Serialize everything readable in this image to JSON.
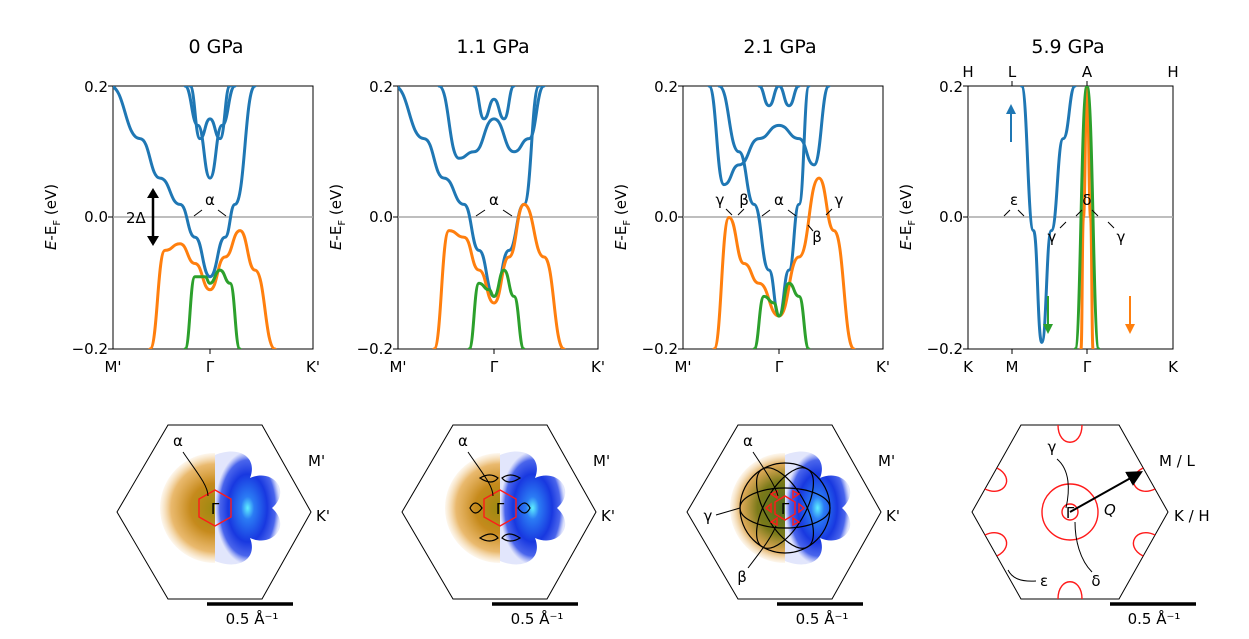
{
  "chart_data": [
    {
      "type": "line",
      "title": "0 GPa",
      "ylabel": "E-E_F (eV)",
      "ylim": [
        -0.2,
        0.2
      ],
      "y_ticks": [
        "0.2",
        "0.0",
        "−0.2"
      ],
      "x_ticks": [
        "M'",
        "Γ",
        "K'"
      ],
      "top_ticks": [],
      "annotations": [
        "2Δ",
        "α"
      ],
      "series": [
        {
          "color": "#1f77b4",
          "x": [
            -1,
            -0.7,
            -0.5,
            -0.3,
            -0.15,
            0,
            0.15,
            0.25,
            0.45
          ],
          "y": [
            0.2,
            0.12,
            0.06,
            0.02,
            -0.03,
            -0.09,
            -0.03,
            0.02,
            0.2
          ]
        },
        {
          "color": "#1f77b4",
          "x": [
            -0.25,
            -0.12,
            0,
            0.12,
            0.25
          ],
          "y": [
            0.2,
            0.14,
            0.06,
            0.14,
            0.2
          ]
        },
        {
          "color": "#1f77b4",
          "x": [
            -0.2,
            -0.1,
            0,
            0.1,
            0.2
          ],
          "y": [
            0.2,
            0.12,
            0.15,
            0.12,
            0.2
          ]
        },
        {
          "color": "#ff7f0e",
          "x": [
            -0.6,
            -0.45,
            -0.3,
            -0.15,
            0,
            0.15,
            0.3,
            0.45,
            0.65
          ],
          "y": [
            -0.2,
            -0.05,
            -0.04,
            -0.07,
            -0.11,
            -0.06,
            -0.02,
            -0.08,
            -0.2
          ]
        },
        {
          "color": "#2ca02c",
          "x": [
            -0.25,
            -0.15,
            -0.05,
            0,
            0.1,
            0.2,
            0.3
          ],
          "y": [
            -0.2,
            -0.09,
            -0.09,
            -0.1,
            -0.08,
            -0.1,
            -0.2
          ]
        }
      ],
      "bz": {
        "labels": [
          "α",
          "Γ",
          "M'",
          "K'"
        ],
        "scale_bar": "0.5 Å⁻¹"
      }
    },
    {
      "type": "line",
      "title": "1.1 GPa",
      "ylabel": "E-E_F (eV)",
      "ylim": [
        -0.2,
        0.2
      ],
      "y_ticks": [
        "0.2",
        "0.0",
        "−0.2"
      ],
      "x_ticks": [
        "M'",
        "Γ",
        "K'"
      ],
      "top_ticks": [],
      "annotations": [
        "α"
      ],
      "series": [
        {
          "color": "#1f77b4",
          "x": [
            -1,
            -0.7,
            -0.5,
            -0.3,
            -0.15,
            0,
            0.15,
            0.3,
            0.45
          ],
          "y": [
            0.2,
            0.12,
            0.06,
            0.02,
            -0.05,
            -0.12,
            -0.05,
            0.02,
            0.2
          ]
        },
        {
          "color": "#1f77b4",
          "x": [
            -0.55,
            -0.35,
            -0.2,
            0,
            0.2,
            0.35,
            0.5
          ],
          "y": [
            0.2,
            0.09,
            0.1,
            0.15,
            0.1,
            0.12,
            0.2
          ]
        },
        {
          "color": "#1f77b4",
          "x": [
            -0.2,
            -0.1,
            0,
            0.1,
            0.2
          ],
          "y": [
            0.2,
            0.15,
            0.18,
            0.15,
            0.2
          ]
        },
        {
          "color": "#ff7f0e",
          "x": [
            -0.6,
            -0.45,
            -0.3,
            -0.15,
            0,
            0.15,
            0.3,
            0.5,
            0.7
          ],
          "y": [
            -0.2,
            -0.02,
            -0.03,
            -0.08,
            -0.13,
            -0.06,
            0.02,
            -0.06,
            -0.2
          ]
        },
        {
          "color": "#2ca02c",
          "x": [
            -0.25,
            -0.15,
            -0.05,
            0,
            0.1,
            0.2,
            0.3
          ],
          "y": [
            -0.2,
            -0.1,
            -0.11,
            -0.12,
            -0.08,
            -0.12,
            -0.2
          ]
        }
      ],
      "bz": {
        "labels": [
          "α",
          "Γ",
          "M'",
          "K'"
        ],
        "scale_bar": "0.5 Å⁻¹"
      }
    },
    {
      "type": "line",
      "title": "2.1 GPa",
      "ylabel": "E-E_F (eV)",
      "ylim": [
        -0.2,
        0.2
      ],
      "y_ticks": [
        "0.2",
        "0.0",
        "−0.2"
      ],
      "x_ticks": [
        "M'",
        "Γ",
        "K'"
      ],
      "top_ticks": [],
      "annotations": [
        "γ",
        "β",
        "α",
        "β",
        "γ"
      ],
      "series": [
        {
          "color": "#1f77b4",
          "x": [
            -0.6,
            -0.4,
            -0.25,
            -0.1,
            0,
            0.1,
            0.2,
            0.3
          ],
          "y": [
            0.2,
            0.1,
            0.02,
            -0.08,
            -0.15,
            -0.08,
            0.02,
            0.2
          ]
        },
        {
          "color": "#1f77b4",
          "x": [
            -0.7,
            -0.55,
            -0.4,
            -0.2,
            0,
            0.2,
            0.35,
            0.5
          ],
          "y": [
            0.2,
            0.05,
            0.08,
            0.12,
            0.14,
            0.12,
            0.08,
            0.2
          ]
        },
        {
          "color": "#1f77b4",
          "x": [
            -0.2,
            -0.1,
            0,
            0.1,
            0.2
          ],
          "y": [
            0.2,
            0.17,
            0.2,
            0.17,
            0.2
          ]
        },
        {
          "color": "#ff7f0e",
          "x": [
            -0.65,
            -0.5,
            -0.35,
            -0.2,
            0,
            0.2,
            0.4,
            0.55,
            0.75
          ],
          "y": [
            -0.2,
            0.0,
            -0.07,
            -0.1,
            -0.15,
            -0.06,
            0.06,
            -0.02,
            -0.2
          ]
        },
        {
          "color": "#2ca02c",
          "x": [
            -0.25,
            -0.15,
            -0.05,
            0,
            0.1,
            0.2,
            0.3
          ],
          "y": [
            -0.2,
            -0.12,
            -0.13,
            -0.15,
            -0.1,
            -0.12,
            -0.2
          ]
        }
      ],
      "bz": {
        "labels": [
          "α",
          "Γ",
          "γ",
          "β",
          "M'",
          "K'"
        ],
        "scale_bar": "0.5 Å⁻¹"
      }
    },
    {
      "type": "line",
      "title": "5.9 GPa",
      "ylabel": "E-E_F (eV)",
      "ylim": [
        -0.2,
        0.2
      ],
      "y_ticks": [
        "0.2",
        "0.0",
        "−0.2"
      ],
      "x_ticks": [
        "K",
        "M",
        "Γ",
        "K"
      ],
      "top_ticks": [
        "H",
        "L",
        "A",
        "H"
      ],
      "annotations": [
        "ε",
        "γ",
        "δ",
        "γ"
      ],
      "series": [
        {
          "color": "#1f77b4",
          "x": [
            -0.55,
            -0.45,
            -0.38,
            -0.3,
            -0.2,
            -0.1
          ],
          "y": [
            0.2,
            -0.02,
            -0.19,
            -0.02,
            0.12,
            0.2
          ]
        },
        {
          "color": "#ff7f0e",
          "x": [
            -0.05,
            -0.03,
            0,
            0.03,
            0.05
          ],
          "y": [
            -0.2,
            0,
            0.2,
            0,
            -0.2
          ]
        },
        {
          "color": "#2ca02c",
          "x": [
            -0.1,
            0,
            0.1
          ],
          "y": [
            -0.2,
            0.2,
            -0.2
          ]
        }
      ],
      "bz": {
        "labels": [
          "γ",
          "Γ",
          "Q",
          "M / L",
          "K / H",
          "ε",
          "δ"
        ],
        "scale_bar": "0.5 Å⁻¹"
      }
    }
  ]
}
